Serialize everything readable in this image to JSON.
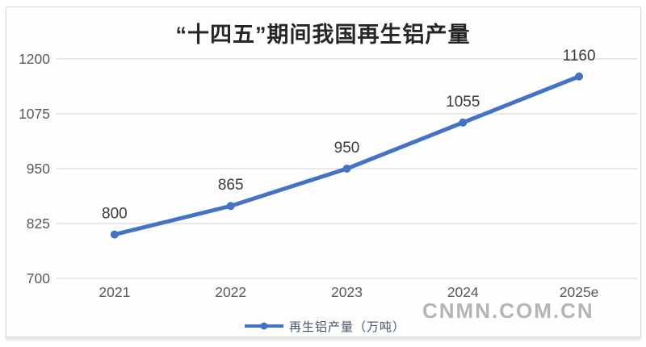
{
  "page": {
    "watermark": "CNMN.COM.CN"
  },
  "chart_data": {
    "type": "line",
    "title": "“十四五”期间我国再生铝产量",
    "categories": [
      "2021",
      "2022",
      "2023",
      "2024",
      "2025e"
    ],
    "series": [
      {
        "name": "再生铝产量（万吨）",
        "values": [
          800,
          865,
          950,
          1055,
          1160
        ]
      }
    ],
    "yticks": [
      700,
      825,
      950,
      1075,
      1200
    ],
    "ylim": [
      700,
      1200
    ],
    "xlabel": "",
    "ylabel": "",
    "grid": true,
    "data_labels": true,
    "legend_position": "bottom",
    "colors": {
      "line": "#4472c4",
      "marker": "#4472c4",
      "gridline": "#dcdcdc",
      "tick_label": "#595959",
      "data_label": "#3b3b3b",
      "title": "#262626",
      "legend_text": "#44546a",
      "watermark": "#b5b5b5",
      "frame_border": "#d9d9d9"
    }
  }
}
